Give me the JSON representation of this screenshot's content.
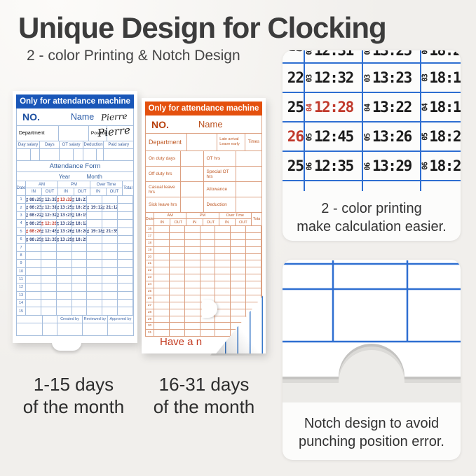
{
  "header": {
    "title": "Unique Design for Clocking",
    "subtitle": "2 - color Printing & Notch Design"
  },
  "colors": {
    "blue_accent": "#1956b8",
    "orange_accent": "#e4500e",
    "panel_grid_blue": "#2e6ed1",
    "stamp_black": "#1b1b1b",
    "stamp_red": "#c0392b"
  },
  "cards": {
    "blue": {
      "banner": "Only for attendance machine",
      "no_label": "NO.",
      "name_label": "Name",
      "name_value": "Pierre",
      "department": "Department",
      "position": "Position",
      "signature": "Pierre",
      "day_salary": "Day salary",
      "days": "Days",
      "ot_salary": "OT salary",
      "deduction": "Deduction",
      "paid_salary": "Paid salary",
      "form_title": "Attendance Form",
      "year": "Year",
      "month": "Month",
      "date_col": "Date",
      "am": "AM",
      "pm": "PM",
      "overtime": "Over Time",
      "total": "Total",
      "in": "IN",
      "out": "OUT",
      "footer": [
        "Created by",
        "Reviewed by",
        "Approved by"
      ],
      "rows": [
        {
          "d": "1",
          "c": [
            {
              "k": "01",
              "t": "08:25"
            },
            {
              "k": "01",
              "t": "12:35"
            },
            {
              "k": "01",
              "t": "13:32",
              "r": true
            },
            {
              "k": "01",
              "t": "18:21"
            },
            null,
            null
          ]
        },
        {
          "d": "2",
          "c": [
            {
              "k": "02",
              "t": "08:23"
            },
            {
              "k": "02",
              "t": "12:31"
            },
            {
              "k": "02",
              "t": "13:25"
            },
            {
              "k": "02",
              "t": "18:25"
            },
            {
              "k": "02",
              "t": "19:12"
            },
            {
              "k": "02",
              "t": "21:12"
            }
          ]
        },
        {
          "d": "3",
          "c": [
            {
              "k": "03",
              "t": "08:22"
            },
            {
              "k": "03",
              "t": "12:32"
            },
            {
              "k": "03",
              "t": "13:23"
            },
            {
              "k": "03",
              "t": "18:15"
            },
            null,
            null
          ]
        },
        {
          "d": "4",
          "c": [
            {
              "k": "04",
              "t": "08:25"
            },
            {
              "k": "04",
              "t": "12:28",
              "r": true
            },
            {
              "k": "04",
              "t": "13:22"
            },
            {
              "k": "04",
              "t": "18:12"
            },
            null,
            null
          ]
        },
        {
          "d": "5",
          "c": [
            {
              "k": "05",
              "t": "08:26",
              "r": true
            },
            {
              "k": "05",
              "t": "12:45"
            },
            {
              "k": "05",
              "t": "13:26"
            },
            {
              "k": "05",
              "t": "18:26"
            },
            {
              "k": "05",
              "t": "19:18"
            },
            {
              "k": "05",
              "t": "21:35"
            }
          ]
        },
        {
          "d": "6",
          "c": [
            {
              "k": "06",
              "t": "08:25"
            },
            {
              "k": "06",
              "t": "12:35"
            },
            {
              "k": "06",
              "t": "13:29"
            },
            {
              "k": "06",
              "t": "18:29"
            },
            null,
            null
          ]
        },
        {
          "d": "7",
          "c": [
            null,
            null,
            null,
            null,
            null,
            null
          ]
        },
        {
          "d": "8",
          "c": [
            null,
            null,
            null,
            null,
            null,
            null
          ]
        },
        {
          "d": "9",
          "c": [
            null,
            null,
            null,
            null,
            null,
            null
          ]
        },
        {
          "d": "10",
          "c": [
            null,
            null,
            null,
            null,
            null,
            null
          ]
        },
        {
          "d": "11",
          "c": [
            null,
            null,
            null,
            null,
            null,
            null
          ]
        },
        {
          "d": "12",
          "c": [
            null,
            null,
            null,
            null,
            null,
            null
          ]
        },
        {
          "d": "13",
          "c": [
            null,
            null,
            null,
            null,
            null,
            null
          ]
        },
        {
          "d": "14",
          "c": [
            null,
            null,
            null,
            null,
            null,
            null
          ]
        },
        {
          "d": "15",
          "c": [
            null,
            null,
            null,
            null,
            null,
            null
          ]
        }
      ],
      "day_caption_line1": "1-15 days",
      "day_caption_line2": "of the month"
    },
    "orange": {
      "banner": "Only for attendance machine",
      "no_label": "NO.",
      "name_label": "Name",
      "department": "Department",
      "late_arrival": "Late arrival",
      "leave_early": "Leave early",
      "times": "Times",
      "on_duty_days": "On duty days",
      "ot_hrs": "OT hrs",
      "off_duty_hrs": "Off duty hrs",
      "special_ot_hrs": "Special OT hrs",
      "casual_leave_hrs": "Casual leave hrs",
      "allowance": "Allowance",
      "sick_leave_hrs": "Sick leave hrs",
      "deduction": "Deduction",
      "date_col": "Date",
      "am": "AM",
      "pm": "PM",
      "overtime": "Over Time",
      "total": "Tota",
      "in": "IN",
      "out": "OUT",
      "days": [
        "16",
        "17",
        "18",
        "19",
        "20",
        "21",
        "22",
        "23",
        "24",
        "25",
        "26",
        "27",
        "28",
        "29",
        "30",
        "31"
      ],
      "farewell": "Have a n",
      "day_caption_line1": "16-31 days",
      "day_caption_line2": "of the month"
    }
  },
  "panels": {
    "printing": {
      "rows": [
        {
          "partial": true,
          "left": "23",
          "cells": [
            {
              "k": "02",
              "t": "12:31"
            },
            {
              "k": "02",
              "t": "13:25"
            },
            {
              "k": "02",
              "t": "18:2"
            }
          ]
        },
        {
          "left": "22",
          "cells": [
            {
              "k": "03",
              "t": "12:32"
            },
            {
              "k": "03",
              "t": "13:23"
            },
            {
              "k": "03",
              "t": "18:1"
            }
          ]
        },
        {
          "left": "25",
          "cells": [
            {
              "k": "04",
              "t": "12:28",
              "r": true
            },
            {
              "k": "04",
              "t": "13:22"
            },
            {
              "k": "04",
              "t": "18:1"
            }
          ]
        },
        {
          "left": "26",
          "lr": true,
          "cells": [
            {
              "k": "05",
              "t": "12:45"
            },
            {
              "k": "05",
              "t": "13:26"
            },
            {
              "k": "05",
              "t": "18:2"
            }
          ]
        },
        {
          "left": "25",
          "cells": [
            {
              "k": "06",
              "t": "12:35"
            },
            {
              "k": "06",
              "t": "13:29"
            },
            {
              "k": "06",
              "t": "18:2"
            }
          ]
        }
      ],
      "caption_line1": "2 - color printing",
      "caption_line2": "make calculation easier."
    },
    "notch": {
      "caption_line1": "Notch design to avoid",
      "caption_line2": "punching position error."
    }
  }
}
